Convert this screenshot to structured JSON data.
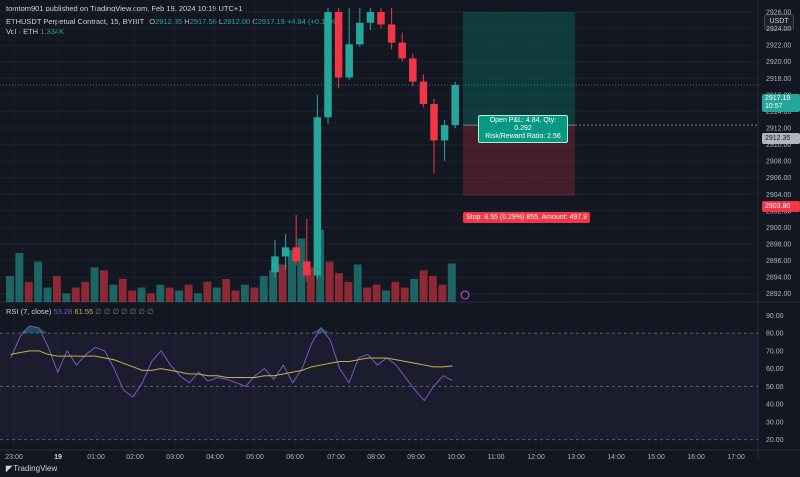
{
  "header": {
    "published": "tomtom901 published on TradingView.com, Feb 19, 2024 10:19 UTC+1",
    "symbol": "ETHUSDT Perpetual Contract, 15, BYBIT",
    "ohlc": {
      "o_label": "O",
      "o": "2912.35",
      "h_label": "H",
      "h": "2917.56",
      "l_label": "L",
      "l": "2912.00",
      "c_label": "C",
      "c": "2917.19",
      "change": "+4.84 (+0.17%)"
    },
    "vol_label": "Vol · ETH",
    "vol_value": "1.334K",
    "currency": "USDT"
  },
  "rsi": {
    "label": "RSI (7, close)",
    "value1": "53.28",
    "value2": "61.55",
    "placeholders": "∅ ∅ ∅ ∅ ∅ ∅ ∅"
  },
  "position": {
    "info_line1": "Open P&L: 4.84, Qty: 0.292",
    "info_line2": "Risk/Reward Ratio: 2.56",
    "stop_text": "Stop: 8.55 (0.29%) 855, Amount: 497.9"
  },
  "price_tags": {
    "current": "2917.19",
    "countdown": "10:57",
    "entry": "2912.35",
    "stop": "2903.80"
  },
  "footer": {
    "brand": "TradingView"
  },
  "colors": {
    "up": "#26a69a",
    "down": "#f23645",
    "rsi_line": "#7e57c2",
    "rsi_ma": "#c9b34a"
  },
  "chart_data": [
    {
      "type": "candlestick",
      "ylim": [
        2891,
        2926
      ],
      "y_ticks": [
        "2926.00",
        "2924.00",
        "2922.00",
        "2920.00",
        "2918.00",
        "2916.00",
        "2914.00",
        "2912.00",
        "2910.00",
        "2908.00",
        "2906.00",
        "2904.00",
        "2902.00",
        "2900.00",
        "2898.00",
        "2896.00",
        "2894.00",
        "2892.00"
      ],
      "x_ticks": [
        "23:00",
        "19",
        "01:00",
        "02:00",
        "03:00",
        "04:00",
        "05:00",
        "06:00",
        "07:00",
        "08:00",
        "09:00",
        "10:00",
        "11:00",
        "12:00",
        "13:00",
        "14:00",
        "15:00",
        "16:00",
        "17:00"
      ],
      "candles": [
        {
          "t": "06:00",
          "o": 2894.6,
          "h": 2898.5,
          "l": 2894.0,
          "c": 2896.5
        },
        {
          "t": "06:15",
          "o": 2896.5,
          "h": 2899.2,
          "l": 2895.0,
          "c": 2897.6
        },
        {
          "t": "06:30",
          "o": 2897.6,
          "h": 2901.5,
          "l": 2895.4,
          "c": 2895.9
        },
        {
          "t": "06:45",
          "o": 2895.9,
          "h": 2901.0,
          "l": 2893.5,
          "c": 2894.2
        },
        {
          "t": "07:00",
          "o": 2894.2,
          "h": 2916.0,
          "l": 2893.8,
          "c": 2913.3
        },
        {
          "t": "07:15",
          "o": 2913.3,
          "h": 2926.5,
          "l": 2912.5,
          "c": 2926.0
        },
        {
          "t": "07:30",
          "o": 2926.0,
          "h": 2926.5,
          "l": 2916.8,
          "c": 2918.1
        },
        {
          "t": "07:45",
          "o": 2918.1,
          "h": 2926.5,
          "l": 2917.8,
          "c": 2922.1
        },
        {
          "t": "08:00",
          "o": 2922.1,
          "h": 2926.5,
          "l": 2921.8,
          "c": 2924.7
        },
        {
          "t": "08:15",
          "o": 2924.7,
          "h": 2926.5,
          "l": 2923.8,
          "c": 2926.0
        },
        {
          "t": "08:30",
          "o": 2926.0,
          "h": 2926.5,
          "l": 2924.0,
          "c": 2924.5
        },
        {
          "t": "08:45",
          "o": 2924.5,
          "h": 2926.5,
          "l": 2921.5,
          "c": 2922.3
        },
        {
          "t": "09:00",
          "o": 2922.3,
          "h": 2923.5,
          "l": 2920.0,
          "c": 2920.4
        },
        {
          "t": "09:15",
          "o": 2920.4,
          "h": 2921.0,
          "l": 2917.0,
          "c": 2917.6
        },
        {
          "t": "09:30",
          "o": 2917.6,
          "h": 2918.5,
          "l": 2914.5,
          "c": 2914.9
        },
        {
          "t": "09:45",
          "o": 2914.9,
          "h": 2915.5,
          "l": 2906.5,
          "c": 2910.5
        },
        {
          "t": "10:00",
          "o": 2910.5,
          "h": 2913.0,
          "l": 2908.0,
          "c": 2912.35
        },
        {
          "t": "10:15",
          "o": 2912.35,
          "h": 2917.56,
          "l": 2912.0,
          "c": 2917.19
        }
      ],
      "entry_price": 2912.35,
      "stop_price": 2903.8,
      "current_price": 2917.19
    },
    {
      "type": "bar",
      "name": "Vol · ETH",
      "values": [
        0.9,
        1.7,
        0.7,
        1.4,
        0.5,
        0.9,
        0.3,
        0.5,
        0.7,
        1.2,
        1.1,
        0.6,
        0.8,
        0.4,
        0.5,
        0.3,
        0.6,
        0.5,
        0.4,
        0.6,
        0.3,
        0.7,
        0.5,
        0.8,
        0.4,
        0.6,
        0.5,
        0.9,
        1.1,
        1.3,
        1.8,
        2.2,
        1.2,
        2.5,
        1.4,
        1.0,
        0.7,
        1.3,
        0.5,
        0.6,
        0.4,
        0.7,
        0.5,
        0.8,
        1.1,
        0.9,
        0.6,
        1.334
      ],
      "up": [
        true,
        true,
        false,
        true,
        true,
        false,
        true,
        false,
        false,
        true,
        false,
        true,
        false,
        false,
        true,
        false,
        true,
        false,
        true,
        false,
        true,
        false,
        true,
        false,
        false,
        true,
        false,
        true,
        true,
        false,
        true,
        true,
        false,
        true,
        false,
        false,
        false,
        true,
        false,
        false,
        true,
        false,
        false,
        true,
        false,
        false,
        false,
        true
      ]
    },
    {
      "type": "line",
      "name": "RSI (7, close)",
      "ylim": [
        17,
        93
      ],
      "y_ticks": [
        "90.00",
        "80.00",
        "70.00",
        "60.00",
        "50.00",
        "40.00",
        "30.00",
        "20.00"
      ],
      "levels": [
        80,
        50,
        20
      ],
      "rsi": [
        66,
        78,
        84,
        83,
        72,
        58,
        70,
        62,
        68,
        72,
        70,
        60,
        48,
        44,
        52,
        64,
        70,
        62,
        56,
        52,
        58,
        53,
        55,
        54,
        52,
        50,
        56,
        60,
        54,
        62,
        52,
        60,
        74,
        83,
        76,
        60,
        52,
        66,
        68,
        62,
        66,
        62,
        55,
        48,
        42,
        50,
        56,
        53.28
      ],
      "rsi_ma": [
        68,
        69,
        70,
        70,
        68,
        67,
        67,
        67,
        67,
        67,
        66,
        65,
        63,
        61,
        59,
        59,
        60,
        59,
        58,
        57,
        57,
        56,
        56,
        55,
        55,
        55,
        55,
        56,
        56,
        57,
        58,
        59,
        61,
        62,
        63,
        64,
        64,
        65,
        66,
        66,
        66,
        65,
        64,
        63,
        62,
        61,
        61,
        61.55
      ]
    }
  ]
}
